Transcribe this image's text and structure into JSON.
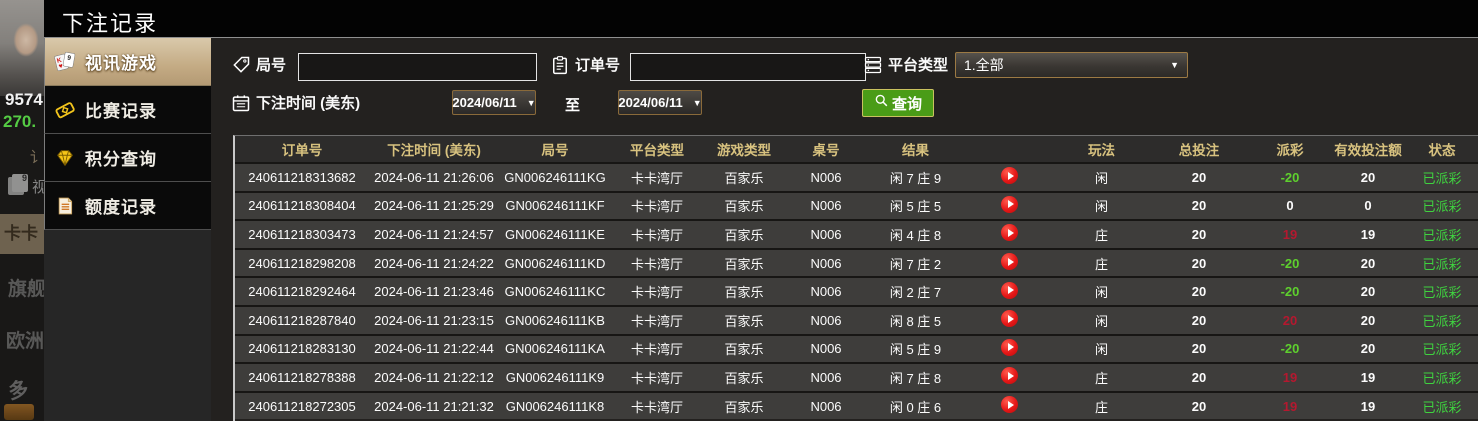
{
  "title": "下注记录",
  "background": {
    "balance_white": "9574",
    "balance_green": "270.",
    "dim_partial_row": "讠",
    "dim_video_partial": "视",
    "dim_kaka": "卡卡",
    "dim_flagship": "旗舰",
    "dim_europe": "欧洲",
    "dim_multi": "多"
  },
  "sidebar": {
    "items": [
      {
        "label": "视讯游戏",
        "icon": "cards-icon",
        "active": true
      },
      {
        "label": "比赛记录",
        "icon": "ticket-icon",
        "active": false
      },
      {
        "label": "积分查询",
        "icon": "diamond-icon",
        "active": false
      },
      {
        "label": "额度记录",
        "icon": "document-icon",
        "active": false
      }
    ]
  },
  "filters": {
    "round_label": "局号",
    "round_value": "",
    "order_label": "订单号",
    "order_value": "",
    "platform_label": "平台类型",
    "platform_value": "1.全部",
    "time_label": "下注时间 (美东)",
    "date_from": "2024/06/11",
    "to_label": "至",
    "date_to": "2024/06/11",
    "query_label": "查询"
  },
  "table": {
    "headers": [
      "订单号",
      "下注时间 (美东)",
      "局号",
      "平台类型",
      "游戏类型",
      "桌号",
      "结果",
      "",
      "玩法",
      "总投注",
      "派彩",
      "有效投注额",
      "状态"
    ],
    "rows": [
      {
        "order_no": "240611218313682",
        "bet_time": "2024-06-11 21:26:06",
        "round_no": "GN006246111KG",
        "platform": "卡卡湾厅",
        "game_type": "百家乐",
        "table_no": "N006",
        "result": "闲 7 庄 9",
        "play_type": "闲",
        "total_bet": "20",
        "payout": "-20",
        "payout_color": "green",
        "valid_bet": "20",
        "status": "已派彩"
      },
      {
        "order_no": "240611218308404",
        "bet_time": "2024-06-11 21:25:29",
        "round_no": "GN006246111KF",
        "platform": "卡卡湾厅",
        "game_type": "百家乐",
        "table_no": "N006",
        "result": "闲 5 庄 5",
        "play_type": "闲",
        "total_bet": "20",
        "payout": "0",
        "payout_color": "white",
        "valid_bet": "0",
        "status": "已派彩"
      },
      {
        "order_no": "240611218303473",
        "bet_time": "2024-06-11 21:24:57",
        "round_no": "GN006246111KE",
        "platform": "卡卡湾厅",
        "game_type": "百家乐",
        "table_no": "N006",
        "result": "闲 4 庄 8",
        "play_type": "庄",
        "total_bet": "20",
        "payout": "19",
        "payout_color": "red",
        "valid_bet": "19",
        "status": "已派彩"
      },
      {
        "order_no": "240611218298208",
        "bet_time": "2024-06-11 21:24:22",
        "round_no": "GN006246111KD",
        "platform": "卡卡湾厅",
        "game_type": "百家乐",
        "table_no": "N006",
        "result": "闲 7 庄 2",
        "play_type": "庄",
        "total_bet": "20",
        "payout": "-20",
        "payout_color": "green",
        "valid_bet": "20",
        "status": "已派彩"
      },
      {
        "order_no": "240611218292464",
        "bet_time": "2024-06-11 21:23:46",
        "round_no": "GN006246111KC",
        "platform": "卡卡湾厅",
        "game_type": "百家乐",
        "table_no": "N006",
        "result": "闲 2 庄 7",
        "play_type": "闲",
        "total_bet": "20",
        "payout": "-20",
        "payout_color": "green",
        "valid_bet": "20",
        "status": "已派彩"
      },
      {
        "order_no": "240611218287840",
        "bet_time": "2024-06-11 21:23:15",
        "round_no": "GN006246111KB",
        "platform": "卡卡湾厅",
        "game_type": "百家乐",
        "table_no": "N006",
        "result": "闲 8 庄 5",
        "play_type": "闲",
        "total_bet": "20",
        "payout": "20",
        "payout_color": "red",
        "valid_bet": "20",
        "status": "已派彩"
      },
      {
        "order_no": "240611218283130",
        "bet_time": "2024-06-11 21:22:44",
        "round_no": "GN006246111KA",
        "platform": "卡卡湾厅",
        "game_type": "百家乐",
        "table_no": "N006",
        "result": "闲 5 庄 9",
        "play_type": "闲",
        "total_bet": "20",
        "payout": "-20",
        "payout_color": "green",
        "valid_bet": "20",
        "status": "已派彩"
      },
      {
        "order_no": "240611218278388",
        "bet_time": "2024-06-11 21:22:12",
        "round_no": "GN006246111K9",
        "platform": "卡卡湾厅",
        "game_type": "百家乐",
        "table_no": "N006",
        "result": "闲 7 庄 8",
        "play_type": "庄",
        "total_bet": "20",
        "payout": "19",
        "payout_color": "red",
        "valid_bet": "19",
        "status": "已派彩"
      },
      {
        "order_no": "240611218272305",
        "bet_time": "2024-06-11 21:21:32",
        "round_no": "GN006246111K8",
        "platform": "卡卡湾厅",
        "game_type": "百家乐",
        "table_no": "N006",
        "result": "闲 0 庄 6",
        "play_type": "庄",
        "total_bet": "20",
        "payout": "19",
        "payout_color": "red",
        "valid_bet": "19",
        "status": "已派彩"
      }
    ]
  },
  "colors": {
    "accent_tan": "#c7b28d",
    "table_header_gold": "#d8c27f",
    "payout_win_red": "#b5182f",
    "payout_loss_green": "#5ed02e",
    "status_green": "#3fd23f",
    "query_button_green": "#4a9c17",
    "date_border_brown": "#8a6a3a"
  }
}
